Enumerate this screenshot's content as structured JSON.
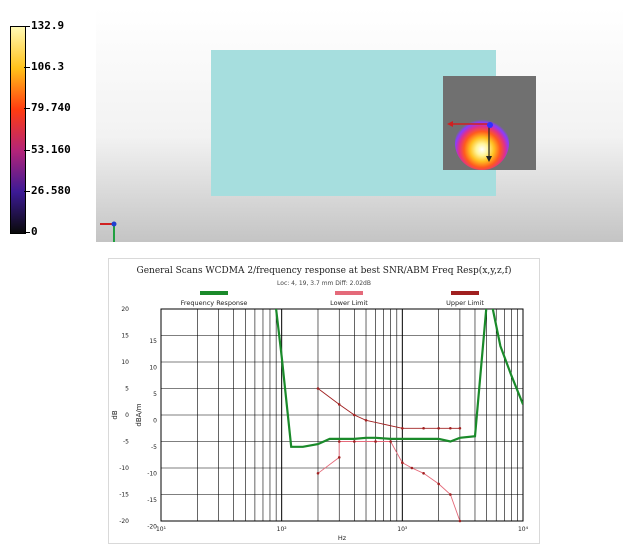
{
  "colorbar": {
    "labels": [
      "132.9",
      "106.3",
      "79.740",
      "53.160",
      "26.580",
      "0"
    ],
    "colors": [
      "#fff9b4",
      "#ffc21a",
      "#ff3c10",
      "#b42478",
      "#3c1a96",
      "#0a0a0a"
    ]
  },
  "view3d": {
    "dut_color": "#a6dede",
    "scan_area_color": "#707070"
  },
  "chart_data": {
    "type": "line",
    "title": "General Scans WCDMA 2/frequency response at best SNR/ABM Freq Resp(x,y,z,f)",
    "subtitle": "Loc: 4, 19, 3.7 mm Diff: 2.02dB",
    "xlabel": "Hz",
    "ylabel": "dB",
    "y2label": "dBA/m",
    "xscale": "log",
    "xlim": [
      10,
      10000
    ],
    "ylim": [
      -20,
      20
    ],
    "xtick_labels": [
      "10¹",
      "10²",
      "10³",
      "10⁴"
    ],
    "ytick_labels": [
      "20",
      "15",
      "10",
      "5",
      "0",
      "-5",
      "-10",
      "-15",
      "-20"
    ],
    "y2tick_labels": [
      "15",
      "10",
      "5",
      "0",
      "-5",
      "-10",
      "-15",
      "-20"
    ],
    "grid": true,
    "legend_position": "top",
    "series": [
      {
        "name": "Frequency Response",
        "color": "#1a8a2a",
        "x": [
          90,
          100,
          120,
          150,
          200,
          250,
          300,
          400,
          500,
          600,
          800,
          1000,
          1500,
          2000,
          2500,
          3000,
          4000,
          5000,
          5500,
          6500,
          8000,
          10000
        ],
        "y": [
          20,
          11,
          -6,
          -6,
          -5.5,
          -4.5,
          -4.5,
          -4.5,
          -4.3,
          -4.3,
          -4.5,
          -4.5,
          -4.5,
          -4.5,
          -5,
          -4.3,
          -4,
          21,
          21,
          13,
          7.5,
          2
        ]
      },
      {
        "name": "Lower Limit",
        "color": "#e46a7a",
        "x": [
          200,
          300,
          300,
          400,
          600,
          800,
          1000,
          1200,
          1500,
          2000,
          2500,
          3000
        ],
        "y": [
          -11,
          -8,
          -5,
          -5,
          -5,
          -5,
          -9,
          -10,
          -11,
          -13,
          -15,
          -20
        ]
      },
      {
        "name": "Upper Limit",
        "color": "#a02020",
        "x": [
          200,
          300,
          400,
          500,
          1000,
          1500,
          2000,
          2500,
          3000
        ],
        "y": [
          5,
          2,
          0,
          -1,
          -2.5,
          -2.5,
          -2.5,
          -2.5,
          -2.5
        ]
      }
    ]
  }
}
